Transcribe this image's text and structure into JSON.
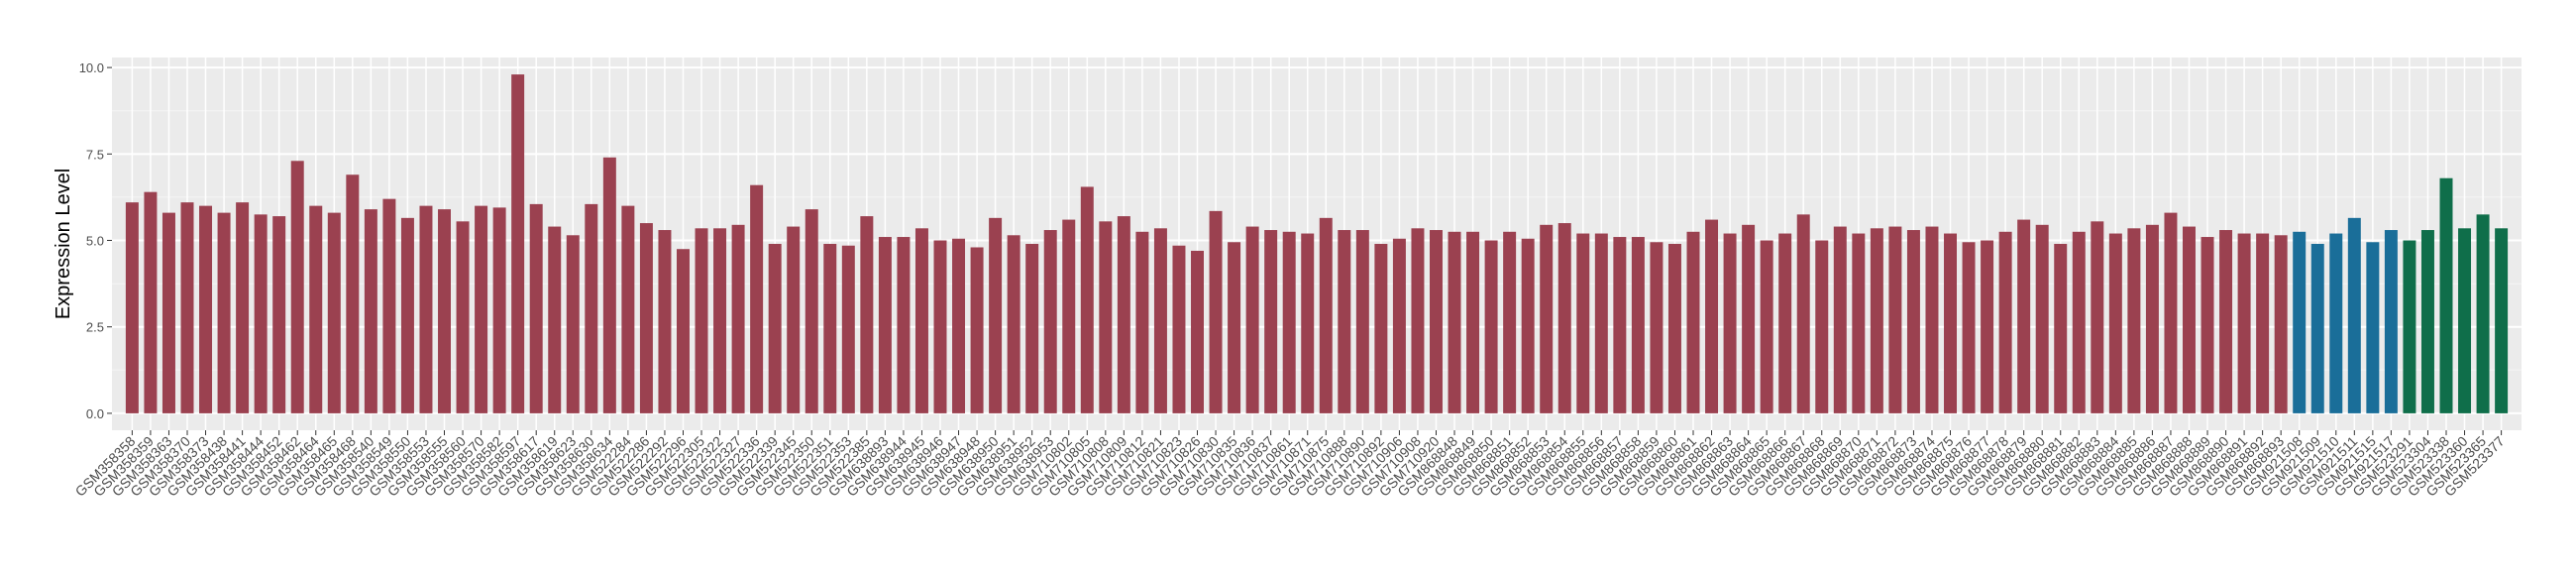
{
  "chart_data": {
    "type": "bar",
    "y_label": "Expression Level",
    "ylim": [
      -0.49,
      10.29
    ],
    "yticks": [
      {
        "value": 0,
        "label": "0.0"
      },
      {
        "value": 2.5,
        "label": "2.5"
      },
      {
        "value": 5,
        "label": "5.0"
      },
      {
        "value": 7.5,
        "label": "7.5"
      },
      {
        "value": 10,
        "label": "10.0"
      }
    ],
    "grid": true,
    "series": [
      {
        "color": "#9b4150",
        "categories": [
          "GSM358358",
          "GSM358359",
          "GSM358363",
          "GSM358370",
          "GSM358373",
          "GSM358438",
          "GSM358441",
          "GSM358444",
          "GSM358452",
          "GSM358462",
          "GSM358464",
          "GSM358465",
          "GSM358468",
          "GSM358540",
          "GSM358549",
          "GSM358550",
          "GSM358553",
          "GSM358555",
          "GSM358560",
          "GSM358570",
          "GSM358582",
          "GSM358597",
          "GSM358617",
          "GSM358619",
          "GSM358623",
          "GSM358630",
          "GSM358634",
          "GSM522284",
          "GSM522286",
          "GSM522292",
          "GSM522296",
          "GSM522305",
          "GSM522322",
          "GSM522327",
          "GSM522336",
          "GSM522339",
          "GSM522345",
          "GSM522350",
          "GSM522351",
          "GSM522353",
          "GSM522385",
          "GSM638893",
          "GSM638944",
          "GSM638945",
          "GSM638946",
          "GSM638947",
          "GSM638948",
          "GSM638950",
          "GSM638951",
          "GSM638952",
          "GSM638953",
          "GSM710802",
          "GSM710805",
          "GSM710808",
          "GSM710809",
          "GSM710812",
          "GSM710821",
          "GSM710823",
          "GSM710826",
          "GSM710830",
          "GSM710835",
          "GSM710836",
          "GSM710837",
          "GSM710861",
          "GSM710871",
          "GSM710875",
          "GSM710888",
          "GSM710890",
          "GSM710892",
          "GSM710906",
          "GSM710908",
          "GSM710920",
          "GSM868848",
          "GSM868849",
          "GSM868850",
          "GSM868851",
          "GSM868852",
          "GSM868853",
          "GSM868854",
          "GSM868855",
          "GSM868856",
          "GSM868857",
          "GSM868858",
          "GSM868859",
          "GSM868860",
          "GSM868861",
          "GSM868862",
          "GSM868863",
          "GSM868864",
          "GSM868865",
          "GSM868866",
          "GSM868867",
          "GSM868868",
          "GSM868869",
          "GSM868870",
          "GSM868871",
          "GSM868872",
          "GSM868873",
          "GSM868874",
          "GSM868875",
          "GSM868876",
          "GSM868877",
          "GSM868878",
          "GSM868879",
          "GSM868880",
          "GSM868881",
          "GSM868882",
          "GSM868883",
          "GSM868884",
          "GSM868885",
          "GSM868886",
          "GSM868887",
          "GSM868888",
          "GSM868889",
          "GSM868890",
          "GSM868891",
          "GSM868892",
          "GSM868893"
        ],
        "values": [
          6.1,
          6.4,
          5.8,
          6.1,
          6.0,
          5.8,
          6.1,
          5.75,
          5.7,
          7.3,
          6.0,
          5.8,
          6.9,
          5.9,
          6.2,
          5.65,
          6.0,
          5.9,
          5.55,
          6.0,
          5.95,
          9.8,
          6.05,
          5.4,
          5.15,
          6.05,
          7.4,
          6.0,
          5.5,
          5.3,
          4.75,
          5.35,
          5.35,
          5.45,
          6.6,
          4.9,
          5.4,
          5.9,
          4.9,
          4.85,
          5.7,
          5.1,
          5.1,
          5.35,
          5.0,
          5.05,
          4.8,
          5.65,
          5.15,
          4.9,
          5.3,
          5.6,
          6.55,
          5.55,
          5.7,
          5.25,
          5.35,
          4.85,
          4.7,
          5.85,
          4.95,
          5.4,
          5.3,
          5.25,
          5.2,
          5.65,
          5.3,
          5.3,
          4.9,
          5.05,
          5.35,
          5.3,
          5.25,
          5.25,
          5.0,
          5.25,
          5.05,
          5.45,
          5.5,
          5.2,
          5.2,
          5.1,
          5.1,
          4.95,
          4.9,
          5.25,
          5.6,
          5.2,
          5.45,
          5.0,
          5.2,
          5.75,
          5.0,
          5.4,
          5.2,
          5.35,
          5.4,
          5.3,
          5.4,
          5.2,
          4.95,
          5.0,
          5.25,
          5.6,
          5.45,
          4.9,
          5.25,
          5.55,
          5.2,
          5.35,
          5.45,
          5.8,
          5.4,
          5.1,
          5.3,
          5.2,
          5.2,
          5.15
        ]
      },
      {
        "color": "#1a6e99",
        "categories": [
          "GSM921508",
          "GSM921509",
          "GSM921510",
          "GSM921511",
          "GSM921515",
          "GSM921517"
        ],
        "values": [
          5.25,
          4.9,
          5.2,
          5.65,
          4.95,
          5.3
        ]
      },
      {
        "color": "#0f6e4a",
        "categories": [
          "GSM523291",
          "GSM523304",
          "GSM523338",
          "GSM523360",
          "GSM523365",
          "GSM523377"
        ],
        "values": [
          5.0,
          5.3,
          6.8,
          5.35,
          5.75,
          5.35
        ]
      }
    ]
  }
}
